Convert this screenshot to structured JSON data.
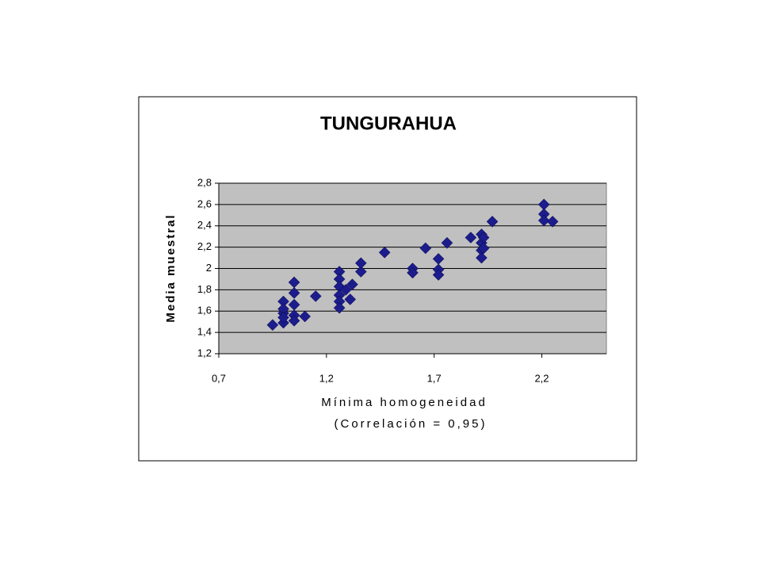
{
  "chart_data": {
    "type": "scatter",
    "title": "TUNGURAHUA",
    "x_label": "Mínima homogeneidad",
    "x_sublabel": "(Correlación = 0,95)",
    "y_label": "Media muestral",
    "color": "#1c1c8c",
    "grid": true,
    "xlim": [
      0.7,
      2.5
    ],
    "xticks": [
      {
        "value": 0.7,
        "label": "0,7"
      },
      {
        "value": 1.2,
        "label": "1,2"
      },
      {
        "value": 1.7,
        "label": "1,7"
      },
      {
        "value": 2.2,
        "label": "2,2"
      }
    ],
    "ylim": [
      1.2,
      2.8
    ],
    "yticks": [
      {
        "value": 1.2,
        "label": "1,2"
      },
      {
        "value": 1.4,
        "label": "1,4"
      },
      {
        "value": 1.6,
        "label": "1,6"
      },
      {
        "value": 1.8,
        "label": "1,8"
      },
      2,
      {
        "value": 2.2,
        "label": "2,2"
      },
      {
        "value": 2.4,
        "label": "2,4"
      },
      {
        "value": 2.6,
        "label": "2,6"
      },
      {
        "value": 2.8,
        "label": "2,8"
      }
    ],
    "x": [
      0.95,
      1.0,
      1.0,
      1.0,
      1.0,
      1.0,
      1.05,
      1.05,
      1.05,
      1.05,
      1.05,
      1.1,
      1.15,
      1.26,
      1.26,
      1.26,
      1.26,
      1.26,
      1.26,
      1.29,
      1.31,
      1.32,
      1.36,
      1.36,
      1.47,
      1.6,
      1.6,
      1.66,
      1.72,
      1.72,
      1.72,
      1.76,
      1.87,
      1.92,
      1.92,
      1.92,
      1.92,
      1.93,
      1.93,
      1.97,
      2.21,
      2.21,
      2.21,
      2.25
    ],
    "values": [
      1.47,
      1.49,
      1.58,
      1.69,
      1.62,
      1.54,
      1.87,
      1.77,
      1.66,
      1.56,
      1.51,
      1.55,
      1.74,
      1.97,
      1.9,
      1.83,
      1.75,
      1.69,
      1.63,
      1.8,
      1.71,
      1.85,
      1.97,
      2.05,
      2.15,
      2.0,
      1.96,
      2.19,
      2.09,
      1.99,
      1.94,
      2.24,
      2.29,
      2.32,
      2.24,
      2.17,
      2.1,
      2.29,
      2.19,
      2.44,
      2.6,
      2.51,
      2.45,
      2.44
    ]
  }
}
